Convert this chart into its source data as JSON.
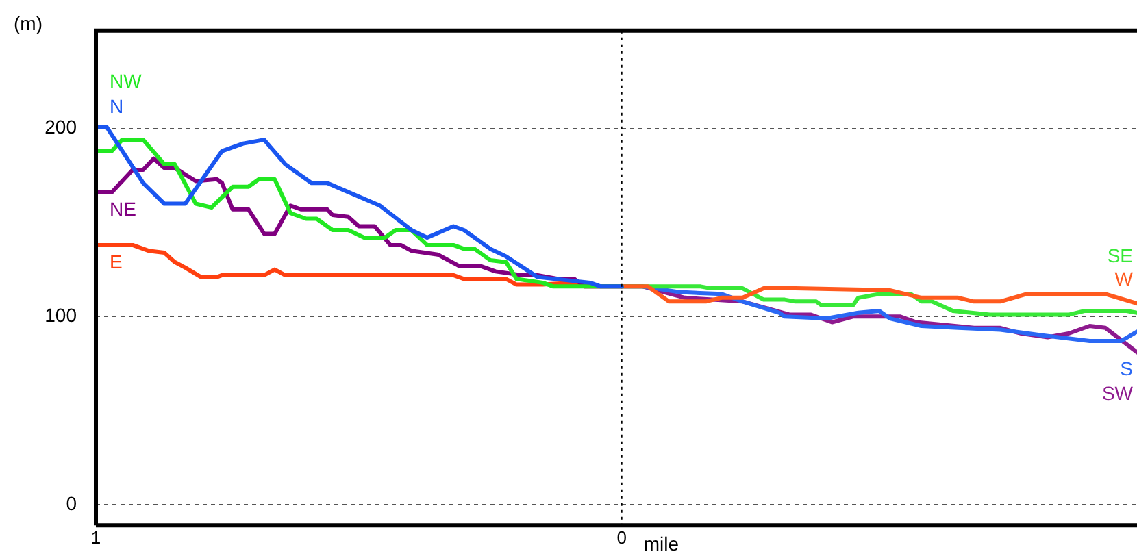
{
  "chart_data": {
    "type": "line",
    "ylabel": "(m)",
    "xlabel": "mile",
    "xlim": [
      -1,
      0.98
    ],
    "xticks": [
      {
        "value": -1,
        "label": "1"
      },
      {
        "value": 0,
        "label": "0"
      }
    ],
    "ylim": [
      -11,
      252
    ],
    "yticks": [
      0,
      100,
      200
    ],
    "grid": "y",
    "ref_lines": [
      {
        "axis": "x",
        "value": 0,
        "color": "#000000",
        "line_style": "dotted"
      }
    ],
    "legend": false,
    "marker": "none",
    "line_style": "solid",
    "series": [
      {
        "name": "N",
        "color": "#1a56f0",
        "x": [
          -1,
          -0.98,
          -0.91,
          -0.87,
          -0.85,
          -0.83,
          -0.76,
          -0.72,
          -0.68,
          -0.64,
          -0.59,
          -0.56,
          -0.51,
          -0.46,
          -0.4,
          -0.37,
          -0.32,
          -0.3,
          -0.25,
          -0.22,
          -0.16,
          -0.06,
          -0.04,
          0
        ],
        "values": [
          201,
          201,
          171,
          160,
          160,
          160,
          188,
          192,
          194,
          181,
          171,
          171,
          165,
          159,
          146,
          142,
          148,
          146,
          136,
          132,
          121,
          118,
          116,
          116
        ]
      },
      {
        "name": "NW",
        "color": "#22e822",
        "x": [
          -1,
          -0.97,
          -0.95,
          -0.91,
          -0.87,
          -0.85,
          -0.81,
          -0.78,
          -0.74,
          -0.71,
          -0.69,
          -0.66,
          -0.63,
          -0.6,
          -0.58,
          -0.55,
          -0.52,
          -0.49,
          -0.45,
          -0.43,
          -0.4,
          -0.37,
          -0.32,
          -0.3,
          -0.28,
          -0.25,
          -0.22,
          -0.2,
          -0.15,
          -0.13,
          0
        ],
        "values": [
          188,
          188,
          194,
          194,
          181,
          181,
          160,
          158,
          169,
          169,
          173,
          173,
          155,
          152,
          152,
          146,
          146,
          142,
          142,
          146,
          146,
          138,
          138,
          136,
          136,
          130,
          129,
          120,
          118,
          116,
          116
        ]
      },
      {
        "name": "NE",
        "color": "#800080",
        "x": [
          -1,
          -0.97,
          -0.93,
          -0.91,
          -0.89,
          -0.87,
          -0.85,
          -0.81,
          -0.77,
          -0.76,
          -0.74,
          -0.71,
          -0.68,
          -0.66,
          -0.63,
          -0.61,
          -0.56,
          -0.55,
          -0.52,
          -0.5,
          -0.47,
          -0.44,
          -0.42,
          -0.4,
          -0.35,
          -0.31,
          -0.27,
          -0.24,
          -0.19,
          -0.16,
          -0.12,
          -0.09,
          -0.07,
          0
        ],
        "values": [
          166,
          166,
          178,
          178,
          184,
          179,
          179,
          172,
          173,
          171,
          157,
          157,
          144,
          144,
          159,
          157,
          157,
          154,
          153,
          148,
          148,
          138,
          138,
          135,
          133,
          127,
          127,
          124,
          122,
          122,
          120,
          120,
          116,
          116
        ]
      },
      {
        "name": "E",
        "color": "#ff4010",
        "x": [
          -1,
          -0.93,
          -0.9,
          -0.87,
          -0.85,
          -0.83,
          -0.8,
          -0.77,
          -0.76,
          -0.68,
          -0.66,
          -0.64,
          -0.32,
          -0.3,
          -0.22,
          -0.2,
          -0.15,
          -0.09,
          -0.07,
          0
        ],
        "values": [
          138,
          138,
          135,
          134,
          129,
          126,
          121,
          121,
          122,
          122,
          125,
          122,
          122,
          120,
          120,
          117,
          117,
          118,
          116,
          116
        ]
      },
      {
        "name": "W",
        "color": "#ff5a1e",
        "x": [
          0,
          0.05,
          0.09,
          0.16,
          0.19,
          0.23,
          0.27,
          0.33,
          0.51,
          0.57,
          0.64,
          0.67,
          0.72,
          0.77,
          0.92,
          0.98
        ],
        "values": [
          116,
          116,
          108,
          108,
          110,
          110,
          115,
          115,
          114,
          110,
          110,
          108,
          108,
          112,
          112,
          107
        ]
      },
      {
        "name": "SE",
        "color": "#38e838",
        "x": [
          0,
          0.04,
          0.15,
          0.17,
          0.23,
          0.27,
          0.31,
          0.33,
          0.37,
          0.38,
          0.44,
          0.45,
          0.49,
          0.55,
          0.57,
          0.59,
          0.63,
          0.7,
          0.85,
          0.88,
          0.96,
          0.98
        ],
        "values": [
          116,
          116,
          116,
          115,
          115,
          109,
          109,
          108,
          108,
          106,
          106,
          110,
          112,
          112,
          108,
          108,
          103,
          101,
          101,
          103,
          103,
          102
        ]
      },
      {
        "name": "S",
        "color": "#2a68f4",
        "x": [
          0,
          0.04,
          0.11,
          0.19,
          0.23,
          0.3,
          0.31,
          0.39,
          0.45,
          0.49,
          0.51,
          0.57,
          0.64,
          0.72,
          0.8,
          0.89,
          0.95,
          0.98
        ],
        "values": [
          116,
          116,
          113,
          112,
          108,
          102,
          100,
          99,
          102,
          103,
          99,
          95,
          94,
          93,
          90,
          87,
          87,
          92
        ]
      },
      {
        "name": "SW",
        "color": "#8e1a8e",
        "x": [
          0,
          0.04,
          0.12,
          0.23,
          0.32,
          0.36,
          0.4,
          0.44,
          0.53,
          0.56,
          0.67,
          0.72,
          0.76,
          0.81,
          0.85,
          0.89,
          0.92,
          0.98
        ],
        "values": [
          116,
          116,
          110,
          108,
          101,
          101,
          97,
          100,
          100,
          97,
          94,
          94,
          91,
          89,
          91,
          95,
          94,
          81
        ]
      }
    ]
  }
}
